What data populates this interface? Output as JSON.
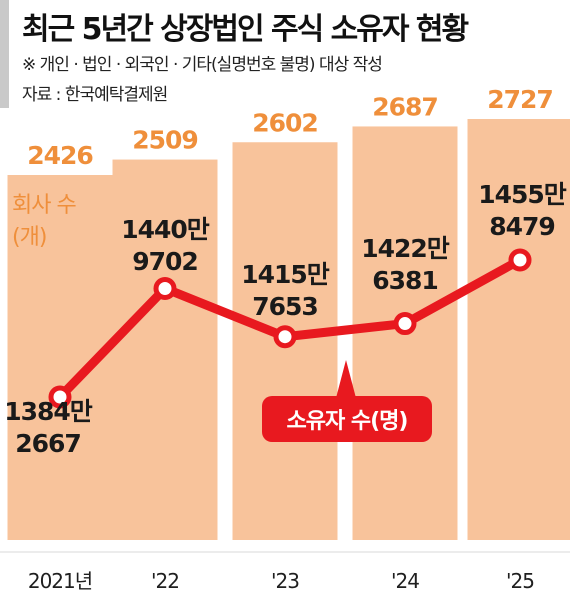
{
  "title": "최근 5년간 상장법인 주식 소유자 현황",
  "note": "※ 개인 · 법인 · 외국인 · 기타(실명번호 불명) 대상 작성",
  "source": "자료 : 한국예탁결제원",
  "colors": {
    "bar": "#f8c39b",
    "bar_label": "#ef8f3b",
    "line": "#e8191f",
    "axis_text": "#1f1f1f",
    "sidebar": "#c9c9c9"
  },
  "chart_data": {
    "type": "bar",
    "categories": [
      "2021년",
      "'22",
      "'23",
      "'24",
      "'25"
    ],
    "bar_series": {
      "name": "회사 수(개)",
      "name_lines": [
        "회사 수",
        "(개)"
      ],
      "values": [
        2426,
        2509,
        2602,
        2687,
        2727
      ],
      "labels": [
        "2426",
        "2509",
        "2602",
        "2687",
        "2727"
      ]
    },
    "line_series": {
      "name": "소유자 수(명)",
      "values": [
        13842667,
        14409702,
        14157653,
        14226381,
        14558479
      ],
      "labels": [
        [
          "1384만",
          "2667"
        ],
        [
          "1440만",
          "9702"
        ],
        [
          "1415만",
          "7653"
        ],
        [
          "1422만",
          "6381"
        ],
        [
          "1455만",
          "8479"
        ]
      ]
    },
    "grid": false,
    "legend": "inline"
  }
}
